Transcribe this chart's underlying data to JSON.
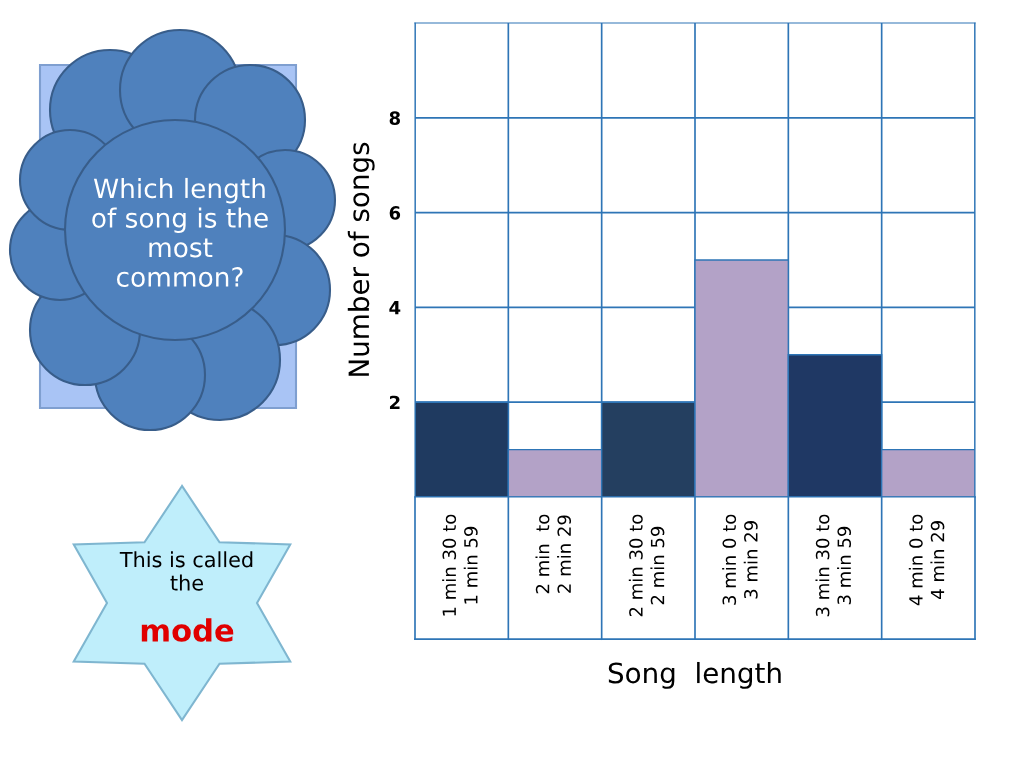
{
  "chart_data": {
    "type": "bar",
    "xlabel": "Song  length",
    "ylabel": "Number of songs",
    "categories": [
      "1 min 30 to\n1 min 59",
      "2 min  to\n2 min 29",
      "2 min 30 to\n2 min 59",
      "3 min 0 to\n3 min 29",
      "3 min 30 to\n3 min 59",
      "4 min 0 to\n4 min 29"
    ],
    "values": [
      2,
      1,
      2,
      5,
      3,
      1
    ],
    "colors": [
      "#1f3a60",
      "#b3a2c7",
      "#243f60",
      "#b3a2c7",
      "#1f3864",
      "#b3a2c7"
    ],
    "ylim": [
      0,
      10
    ],
    "yticks": [
      2,
      4,
      6,
      8
    ],
    "grid": true,
    "annotations": [
      "Which length of song is the most common?",
      "This is called the",
      "mode"
    ]
  }
}
